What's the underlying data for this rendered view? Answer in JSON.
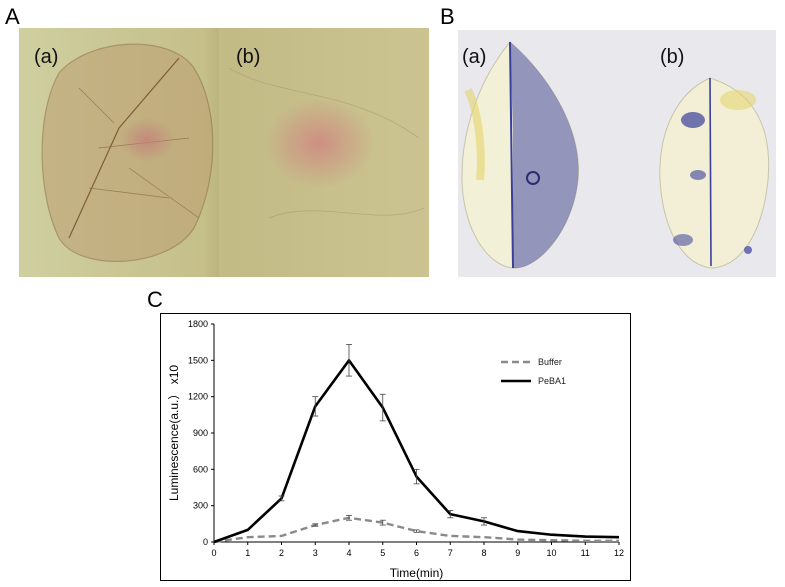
{
  "panels": {
    "a_letter": "A",
    "b_letter": "B",
    "c_letter": "C",
    "a_left_label": "(a)",
    "a_right_label": "(b)",
    "b_left_label": "(a)",
    "b_right_label": "(b)"
  },
  "colors": {
    "buffer": "#8a8a8a",
    "pebA1": "#000000",
    "dab_left_bg": "#c9c38f",
    "dab_right_bg": "#c8bf8c",
    "trypan_bg": "#e9e9ee",
    "trypan_stain": "#3a3f9a"
  },
  "chart_data": {
    "type": "line",
    "xlabel": "Time(min)",
    "ylabel": "Luminescence(a.u.） x10",
    "xlim": [
      0,
      12
    ],
    "ylim": [
      0,
      1800
    ],
    "xticks": [
      "0",
      "1",
      "2",
      "3",
      "4",
      "5",
      "6",
      "7",
      "8",
      "9",
      "10",
      "11",
      "12"
    ],
    "yticks": [
      "0",
      "300",
      "600",
      "900",
      "1200",
      "1500",
      "1800"
    ],
    "x": [
      0,
      1,
      2,
      3,
      4,
      5,
      6,
      7,
      8,
      9,
      10,
      11,
      12
    ],
    "legend_position": "top-right",
    "series": [
      {
        "name": "Buffer",
        "style": "dashed",
        "values": [
          0,
          40,
          50,
          140,
          200,
          160,
          90,
          50,
          40,
          20,
          15,
          10,
          10
        ],
        "errors": [
          0,
          0,
          0,
          10,
          20,
          20,
          10,
          0,
          0,
          0,
          0,
          0,
          0
        ]
      },
      {
        "name": "PeBA1",
        "style": "solid",
        "values": [
          0,
          100,
          360,
          1120,
          1500,
          1110,
          540,
          230,
          170,
          90,
          60,
          45,
          40
        ],
        "errors": [
          0,
          0,
          20,
          80,
          130,
          110,
          60,
          30,
          30,
          0,
          0,
          0,
          0
        ]
      }
    ]
  }
}
